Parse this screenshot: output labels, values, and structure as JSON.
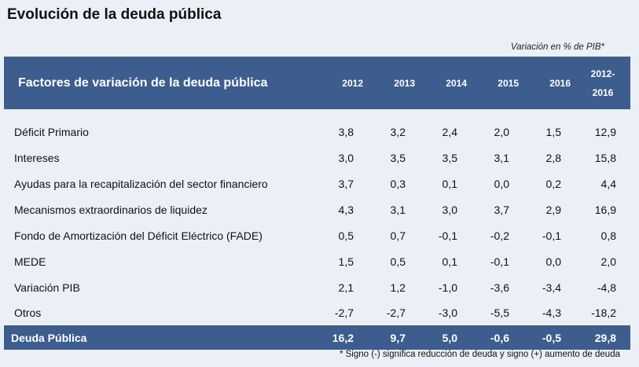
{
  "title": "Evolución de la deuda pública",
  "unit_note": "Variación en % de PIB*",
  "table": {
    "header": {
      "label": "Factores de variación de la deuda pública",
      "years": [
        "2012",
        "2013",
        "2014",
        "2015",
        "2016"
      ],
      "total_line1": "2012-",
      "total_line2": "2016"
    },
    "rows": [
      {
        "label": "Déficit Primario",
        "values": [
          "3,8",
          "3,2",
          "2,4",
          "2,0",
          "1,5",
          "12,9"
        ]
      },
      {
        "label": "Intereses",
        "values": [
          "3,0",
          "3,5",
          "3,5",
          "3,1",
          "2,8",
          "15,8"
        ]
      },
      {
        "label": "Ayudas para la recapitalización del sector financiero",
        "values": [
          "3,7",
          "0,3",
          "0,1",
          "0,0",
          "0,2",
          "4,4"
        ]
      },
      {
        "label": "Mecanismos extraordinarios de liquidez",
        "values": [
          "4,3",
          "3,1",
          "3,0",
          "3,7",
          "2,9",
          "16,9"
        ]
      },
      {
        "label": "Fondo de Amortización del Déficit Eléctrico (FADE)",
        "values": [
          "0,5",
          "0,7",
          "-0,1",
          "-0,2",
          "-0,1",
          "0,8"
        ]
      },
      {
        "label": "MEDE",
        "values": [
          "1,5",
          "0,5",
          "0,1",
          "-0,1",
          "0,0",
          "2,0"
        ]
      },
      {
        "label": "Variación PIB",
        "values": [
          "2,1",
          "1,2",
          "-1,0",
          "-3,6",
          "-3,4",
          "-4,8"
        ]
      },
      {
        "label": "Otros",
        "values": [
          "-2,7",
          "-2,7",
          "-3,0",
          "-5,5",
          "-4,3",
          "-18,2"
        ]
      }
    ],
    "total": {
      "label": "Deuda Pública",
      "values": [
        "16,2",
        "9,7",
        "5,0",
        "-0,6",
        "-0,5",
        "29,8"
      ]
    }
  },
  "footnote": "* Signo (-) significa reducción de deuda y signo (+) aumento de deuda",
  "colors": {
    "header_bg": "#3d5d8e",
    "page_bg": "#eaf0f6"
  }
}
